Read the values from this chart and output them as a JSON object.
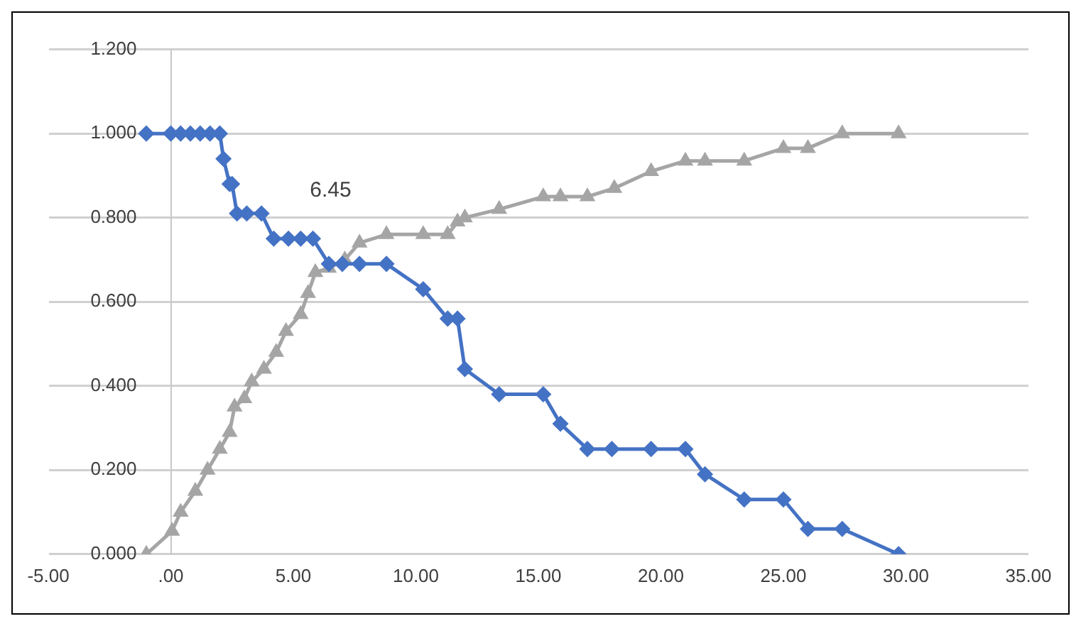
{
  "chart_data": {
    "type": "line",
    "xlim": [
      -5,
      35
    ],
    "xticks": [
      {
        "value": -5,
        "label": "-5.00"
      },
      {
        "value": 0,
        "label": ".00"
      },
      {
        "value": 5,
        "label": "5.00"
      },
      {
        "value": 10,
        "label": "10.00"
      },
      {
        "value": 15,
        "label": "15.00"
      },
      {
        "value": 20,
        "label": "20.00"
      },
      {
        "value": 25,
        "label": "25.00"
      },
      {
        "value": 30,
        "label": "30.00"
      },
      {
        "value": 35,
        "label": "35.00"
      }
    ],
    "ylim": [
      0,
      1.2
    ],
    "yticks": [
      {
        "value": 0,
        "label": "0.000"
      },
      {
        "value": 0.2,
        "label": "0.200"
      },
      {
        "value": 0.4,
        "label": "0.400"
      },
      {
        "value": 0.6,
        "label": "0.600"
      },
      {
        "value": 0.8,
        "label": "0.800"
      },
      {
        "value": 1,
        "label": "1.000"
      },
      {
        "value": 1.2,
        "label": "1.200"
      }
    ],
    "grid": "y",
    "legend": false,
    "annotations": [
      "6.45"
    ],
    "series": [
      {
        "color": "#4472c4",
        "marker": "diamond",
        "x": [
          -1,
          0,
          0.4,
          0.8,
          1.2,
          1.6,
          2.0,
          2.15,
          2.4,
          2.5,
          2.7,
          3.1,
          3.7,
          4.2,
          4.8,
          5.3,
          5.8,
          6.45,
          7.0,
          7.7,
          8.8,
          10.3,
          11.3,
          11.7,
          12.0,
          13.4,
          15.2,
          15.9,
          17.0,
          18.0,
          19.6,
          21.0,
          21.8,
          23.4,
          25.0,
          26.0,
          27.4,
          29.7
        ],
        "values": [
          1,
          1,
          1,
          1,
          1,
          1,
          1,
          0.94,
          0.88,
          0.88,
          0.81,
          0.81,
          0.81,
          0.75,
          0.75,
          0.75,
          0.75,
          0.69,
          0.69,
          0.69,
          0.69,
          0.63,
          0.56,
          0.56,
          0.44,
          0.38,
          0.38,
          0.31,
          0.25,
          0.25,
          0.25,
          0.25,
          0.19,
          0.13,
          0.13,
          0.06,
          0.06,
          0
        ]
      },
      {
        "color": "#a5a5a5",
        "marker": "triangle",
        "x": [
          -1,
          0.05,
          0.4,
          1.0,
          1.5,
          2.0,
          2.4,
          2.6,
          3.0,
          3.3,
          3.8,
          4.3,
          4.7,
          5.3,
          5.6,
          5.9,
          6.45,
          7.1,
          7.7,
          8.8,
          10.3,
          11.3,
          11.7,
          12.0,
          13.4,
          15.2,
          15.9,
          17.0,
          18.1,
          19.6,
          21.0,
          21.8,
          23.4,
          25.0,
          26.0,
          27.4,
          29.7
        ],
        "values": [
          0,
          0.055,
          0.1,
          0.15,
          0.2,
          0.25,
          0.29,
          0.35,
          0.37,
          0.41,
          0.44,
          0.48,
          0.53,
          0.57,
          0.62,
          0.67,
          0.68,
          0.7,
          0.74,
          0.76,
          0.76,
          0.76,
          0.79,
          0.8,
          0.82,
          0.85,
          0.85,
          0.85,
          0.87,
          0.91,
          0.935,
          0.935,
          0.935,
          0.965,
          0.965,
          1,
          1
        ]
      }
    ]
  }
}
